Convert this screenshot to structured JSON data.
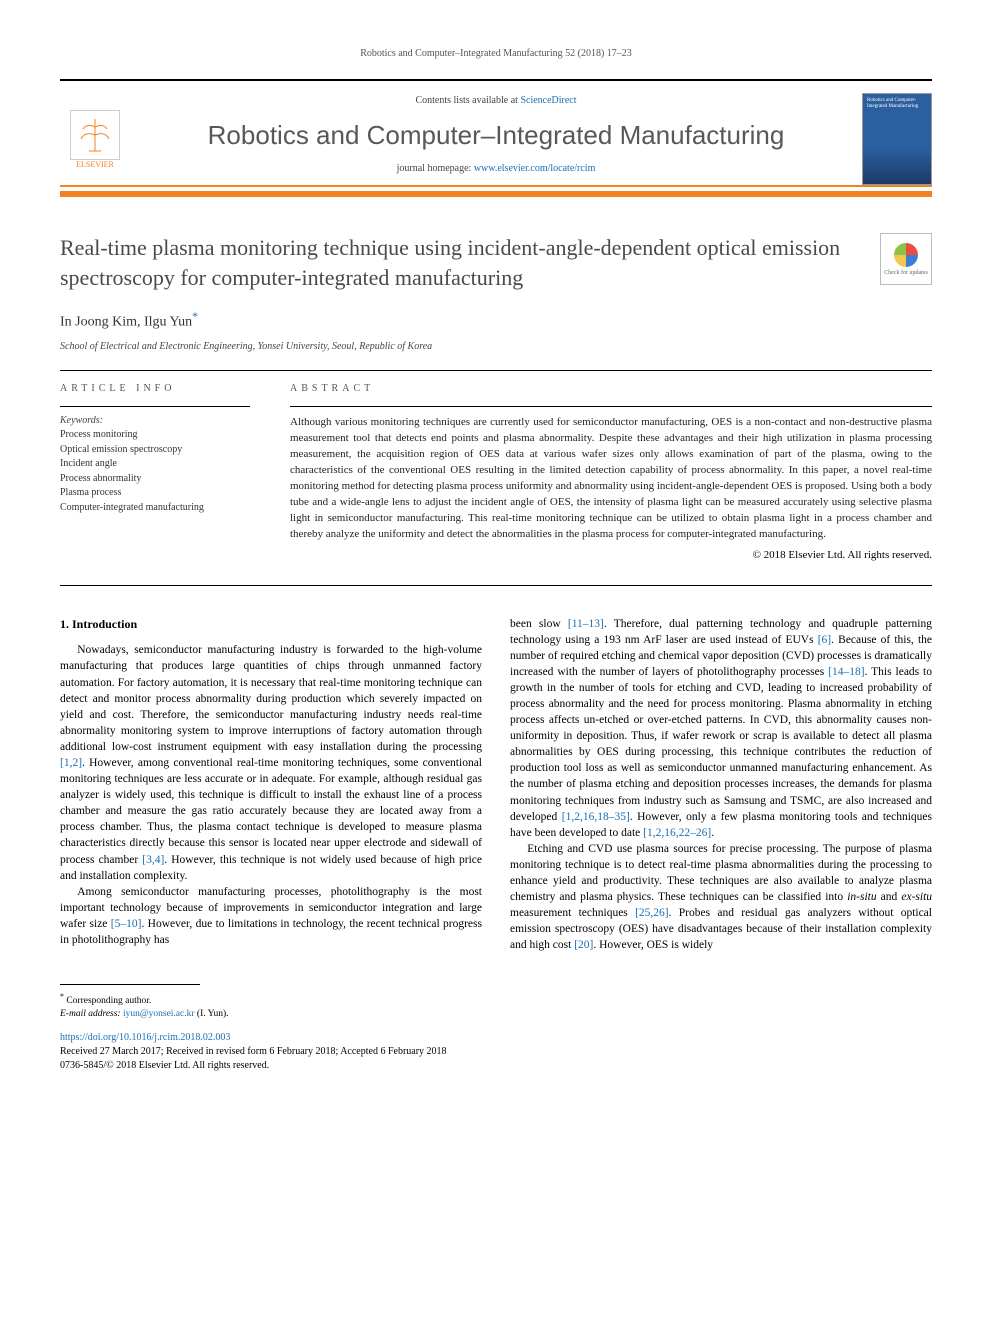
{
  "running_head": "Robotics and Computer–Integrated Manufacturing 52 (2018) 17–23",
  "masthead": {
    "contents_prefix": "Contents lists available at ",
    "contents_link": "ScienceDirect",
    "journal": "Robotics and Computer–Integrated Manufacturing",
    "homepage_prefix": "journal homepage: ",
    "homepage_link": "www.elsevier.com/locate/rcim",
    "publisher": "ELSEVIER"
  },
  "article": {
    "title": "Real-time plasma monitoring technique using incident-angle-dependent optical emission spectroscopy for computer-integrated manufacturing",
    "authors_html": "In Joong Kim, Ilgu Yun",
    "corr_marker": "*",
    "affiliation": "School of Electrical and Electronic Engineering, Yonsei University, Seoul, Republic of Korea",
    "check_updates": "Check for updates"
  },
  "meta": {
    "article_info_label": "ARTICLE INFO",
    "keywords_label": "Keywords:",
    "keywords": [
      "Process monitoring",
      "Optical emission spectroscopy",
      "Incident angle",
      "Process abnormality",
      "Plasma process",
      "Computer-integrated manufacturing"
    ]
  },
  "abstract": {
    "label": "ABSTRACT",
    "text": "Although various monitoring techniques are currently used for semiconductor manufacturing, OES is a non-contact and non-destructive plasma measurement tool that detects end points and plasma abnormality. Despite these advantages and their high utilization in plasma processing measurement, the acquisition region of OES data at various wafer sizes only allows examination of part of the plasma, owing to the characteristics of the conventional OES resulting in the limited detection capability of process abnormality. In this paper, a novel real-time monitoring method for detecting plasma process uniformity and abnormality using incident-angle-dependent OES is proposed. Using both a body tube and a wide-angle lens to adjust the incident angle of OES, the intensity of plasma light can be measured accurately using selective plasma light in semiconductor manufacturing. This real-time monitoring technique can be utilized to obtain plasma light in a process chamber and thereby analyze the uniformity and detect the abnormalities in the plasma process for computer-integrated manufacturing.",
    "copyright": "© 2018 Elsevier Ltd. All rights reserved."
  },
  "intro": {
    "heading": "1. Introduction",
    "p1a": "Nowadays, semiconductor manufacturing industry is forwarded to the high-volume manufacturing that produces large quantities of chips through unmanned factory automation. For factory automation, it is necessary that real-time monitoring technique can detect and monitor process abnormality during production which severely impacted on yield and cost. Therefore, the semiconductor manufacturing industry needs real-time abnormality monitoring system to improve interruptions of factory automation through additional low-cost instrument equipment with easy installation during the processing ",
    "p1_ref1": "[1,2]",
    "p1b": ". However, among conventional real-time monitoring techniques, some conventional monitoring techniques are less accurate or in adequate. For example, although residual gas analyzer is widely used, this technique is difficult to install the exhaust line of a process chamber and measure the gas ratio accurately because they are located away from a process chamber. Thus, the plasma contact technique is developed to measure plasma characteristics directly because this sensor is located near upper electrode and sidewall of process chamber ",
    "p1_ref2": "[3,4]",
    "p1c": ". However, this technique is not widely used because of high price and installation complexity.",
    "p2a": "Among semiconductor manufacturing processes, photolithography is the most important technology because of improvements in semiconductor integration and large wafer size ",
    "p2_ref1": "[5–10]",
    "p2b": ". However, due to limitations in technology, the recent technical progress in photolithography has ",
    "p3a": "been slow ",
    "p3_ref1": "[11–13]",
    "p3b": ". Therefore, dual patterning technology and quadruple patterning technology using a 193 nm ArF laser are used instead of EUVs ",
    "p3_ref2": "[6]",
    "p3c": ". Because of this, the number of required etching and chemical vapor deposition (CVD) processes is dramatically increased with the number of layers of photolithography processes ",
    "p3_ref3": "[14–18]",
    "p3d": ". This leads to growth in the number of tools for etching and CVD, leading to increased probability of process abnormality and the need for process monitoring. Plasma abnormality in etching process affects un-etched or over-etched patterns. In CVD, this abnormality causes non-uniformity in deposition. Thus, if wafer rework or scrap is available to detect all plasma abnormalities by OES during processing, this technique contributes the reduction of production tool loss as well as semiconductor unmanned manufacturing enhancement. As the number of plasma etching and deposition processes increases, the demands for plasma monitoring techniques from industry such as Samsung and TSMC, are also increased and developed ",
    "p3_ref4": "[1,2,16,18–35]",
    "p3e": ". However, only a few plasma monitoring tools and techniques have been developed to date ",
    "p3_ref5": "[1,2,16,22–26]",
    "p3f": ".",
    "p4a": "Etching and CVD use plasma sources for precise processing. The purpose of plasma monitoring technique is to detect real-time plasma abnormalities during the processing to enhance yield and productivity. These techniques are also available to analyze plasma chemistry and plasma physics. These techniques can be classified into ",
    "p4_i1": "in-situ",
    "p4b": " and ",
    "p4_i2": "ex-situ",
    "p4c": " measurement techniques ",
    "p4_ref1": "[25,26]",
    "p4d": ". Probes and residual gas analyzers without optical emission spectroscopy (OES) have disadvantages because of their installation complexity and high cost ",
    "p4_ref2": "[20]",
    "p4e": ". However, OES is widely"
  },
  "footnote": {
    "corr": "Corresponding author.",
    "email_label": "E-mail address:",
    "email": "iyun@yonsei.ac.kr",
    "email_paren": "(I. Yun)."
  },
  "doi": {
    "url": "https://doi.org/10.1016/j.rcim.2018.02.003",
    "history": "Received 27 March 2017; Received in revised form 6 February 2018; Accepted 6 February 2018",
    "issn": "0736-5845/© 2018 Elsevier Ltd. All rights reserved."
  },
  "colors": {
    "orange": "#f58220",
    "link": "#1a6fb5",
    "title_gray": "#4a4a4a"
  }
}
